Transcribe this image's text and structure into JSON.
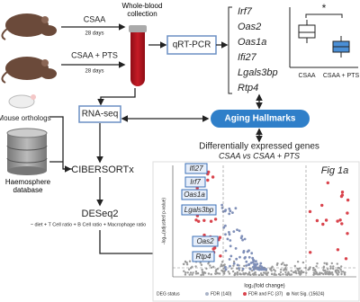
{
  "samples": [
    {
      "label": "CSAA",
      "duration": "28 days"
    },
    {
      "label": "CSAA + PTS",
      "duration": "28 days"
    }
  ],
  "collection": "Whole-blood collection",
  "qpcr": "qRT-PCR",
  "genes": [
    "Irf7",
    "Oas2",
    "Oas1a",
    "Ifi27",
    "Lgals3bp",
    "Rtp4"
  ],
  "boxplot": {
    "significance": "*",
    "categories": [
      "CSAA",
      "CSAA + PTS"
    ]
  },
  "aging_hallmarks": "Aging Hallmarks",
  "rnaseq": "RNA-seq",
  "orthologs": "Mouse orthologs",
  "database": "Haemosphere database",
  "cibersort": "CIBERSORTx",
  "deseq": {
    "title": "DESeq2",
    "formula": "~ diet + T Cell ratio + B Cell ratio + Macrophage ratio"
  },
  "deg": {
    "title": "Differentially expressed genes",
    "comparison": "CSAA vs CSAA + PTS"
  },
  "volcano": {
    "figure_label": "Fig 1a",
    "labeled_genes": [
      "Ifi27",
      "Irf7",
      "Oas1a",
      "Lgals3bp",
      "Oas2",
      "Rtp4"
    ],
    "y_label": "-log₁₀(adjusted p-value)",
    "x_label": "log₂(fold change)",
    "legend_title": "DEG status",
    "legend": [
      "FDR (140)",
      "FDR and FC (37)",
      "Not Sig. (15624)"
    ]
  }
}
